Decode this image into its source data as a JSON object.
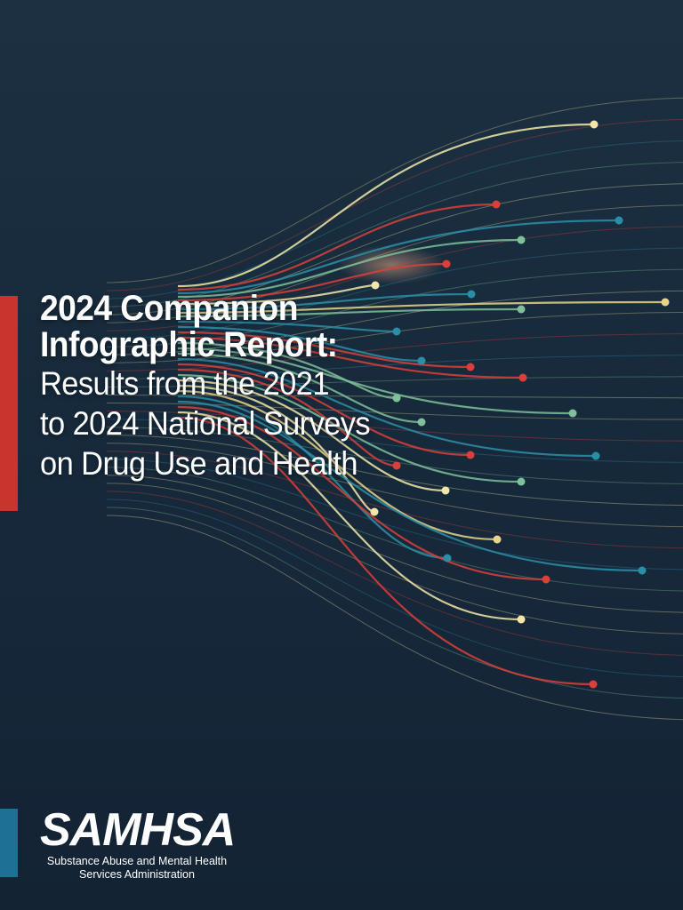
{
  "cover": {
    "title_line_1": "2024 Companion",
    "title_line_2": "Infographic Report:",
    "subtitle_line_1": "Results from the 2021",
    "subtitle_line_2": "to 2024 National Surveys",
    "subtitle_line_3": "on Drug Use and Health"
  },
  "logo": {
    "wordmark": "SAMHSA",
    "tagline_line_1": "Substance Abuse and Mental Health",
    "tagline_line_2": "Services Administration"
  },
  "colors": {
    "background": "#172a3c",
    "accent_red": "#c9352e",
    "accent_teal": "#1e7192",
    "line_palette": [
      "#e6d58a",
      "#d9403a",
      "#2a8fa6",
      "#7fbf9a",
      "#f2e7a8"
    ]
  }
}
